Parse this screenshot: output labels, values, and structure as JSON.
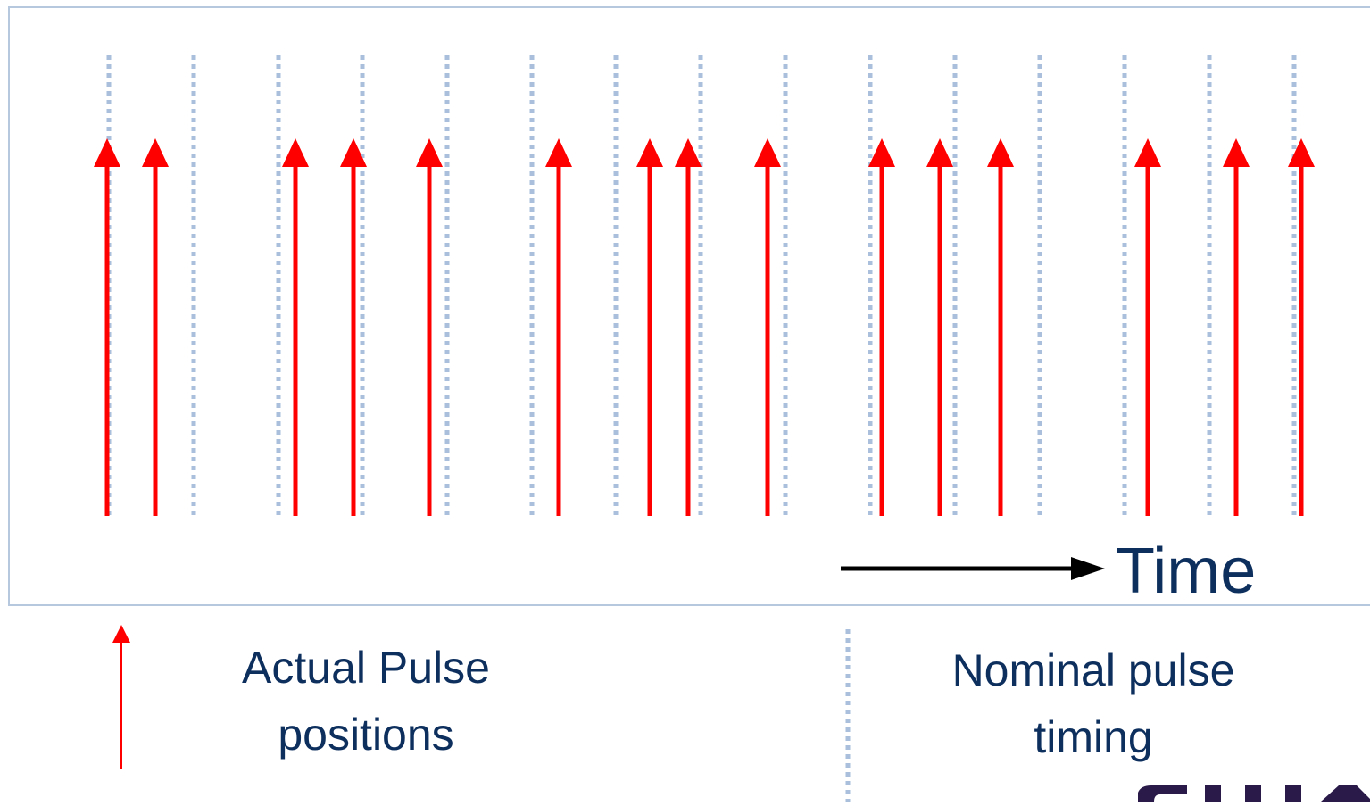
{
  "diagram": {
    "time_label": "Time",
    "legend": {
      "actual_label_line1": "Actual Pulse",
      "actual_label_line2": "positions",
      "nominal_label_line1": "Nominal pulse",
      "nominal_label_line2": "timing"
    },
    "colors": {
      "pulse": "#ff0000",
      "nominal": "#a9bfdc",
      "frame_border": "#b5c8de",
      "text": "#0d2f5e",
      "time_arrow": "#000000"
    }
  }
}
